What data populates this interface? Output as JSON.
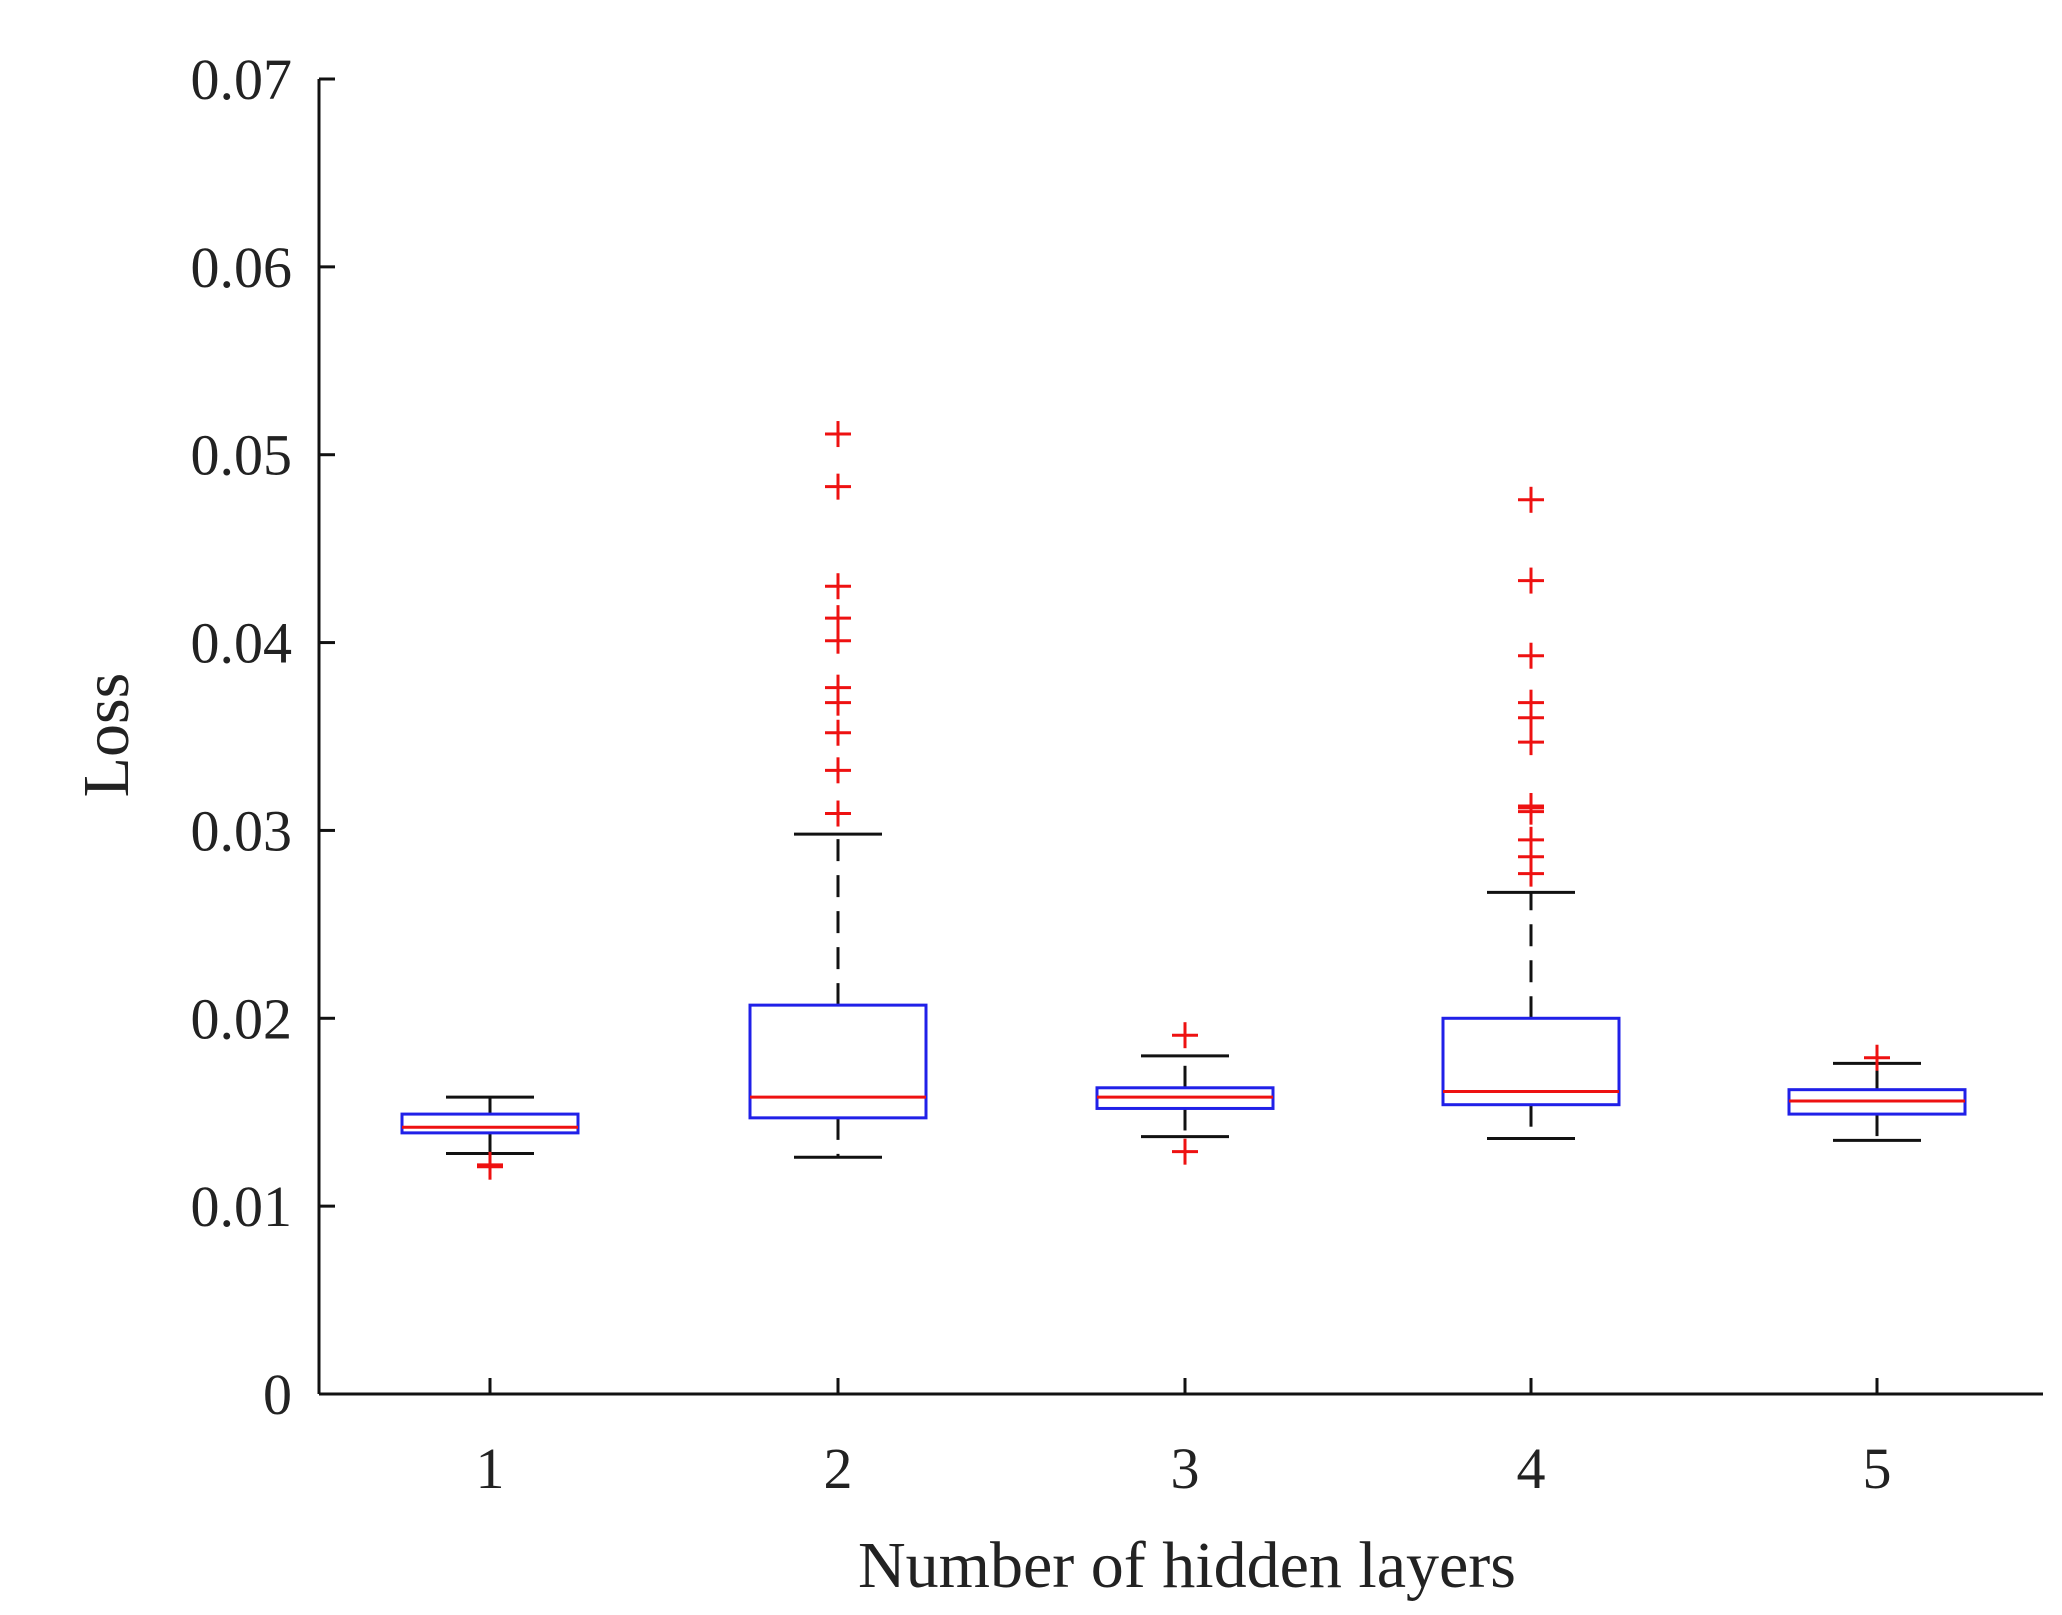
{
  "chart_data": {
    "type": "boxplot",
    "title": "",
    "xlabel": "Number of hidden layers",
    "ylabel": "Loss",
    "ylim": [
      0,
      0.07
    ],
    "yticks": [
      0,
      0.01,
      0.02,
      0.03,
      0.04,
      0.05,
      0.06,
      0.07
    ],
    "ytick_labels": [
      "0",
      "0.01",
      "0.02",
      "0.03",
      "0.04",
      "0.05",
      "0.06",
      "0.07"
    ],
    "categories": [
      "1",
      "2",
      "3",
      "4",
      "5"
    ],
    "grid": false,
    "boxes": [
      {
        "category": "1",
        "whisker_low": 0.0128,
        "q1": 0.0139,
        "median": 0.0142,
        "q3": 0.0149,
        "whisker_high": 0.0158,
        "outliers": [
          0.0122,
          0.0121
        ]
      },
      {
        "category": "2",
        "whisker_low": 0.0126,
        "q1": 0.0147,
        "median": 0.0158,
        "q3": 0.0207,
        "whisker_high": 0.0298,
        "outliers": [
          0.0309,
          0.0332,
          0.0352,
          0.0368,
          0.0376,
          0.0401,
          0.0413,
          0.043,
          0.0483,
          0.0511
        ]
      },
      {
        "category": "3",
        "whisker_low": 0.0137,
        "q1": 0.0152,
        "median": 0.0158,
        "q3": 0.0163,
        "whisker_high": 0.018,
        "outliers": [
          0.0129,
          0.0191
        ]
      },
      {
        "category": "4",
        "whisker_low": 0.0136,
        "q1": 0.0154,
        "median": 0.0161,
        "q3": 0.02,
        "whisker_high": 0.0267,
        "outliers": [
          0.0277,
          0.0286,
          0.0295,
          0.031,
          0.0312,
          0.0313,
          0.0347,
          0.036,
          0.0368,
          0.0393,
          0.0433,
          0.0476
        ]
      },
      {
        "category": "5",
        "whisker_low": 0.0135,
        "q1": 0.0149,
        "median": 0.0156,
        "q3": 0.0162,
        "whisker_high": 0.0176,
        "outliers": [
          0.0179
        ]
      }
    ],
    "colors": {
      "box": "#2020e8",
      "median": "#ee1111",
      "whisker": "#111111",
      "outlier": "#ee1111",
      "axis": "#111111"
    }
  }
}
